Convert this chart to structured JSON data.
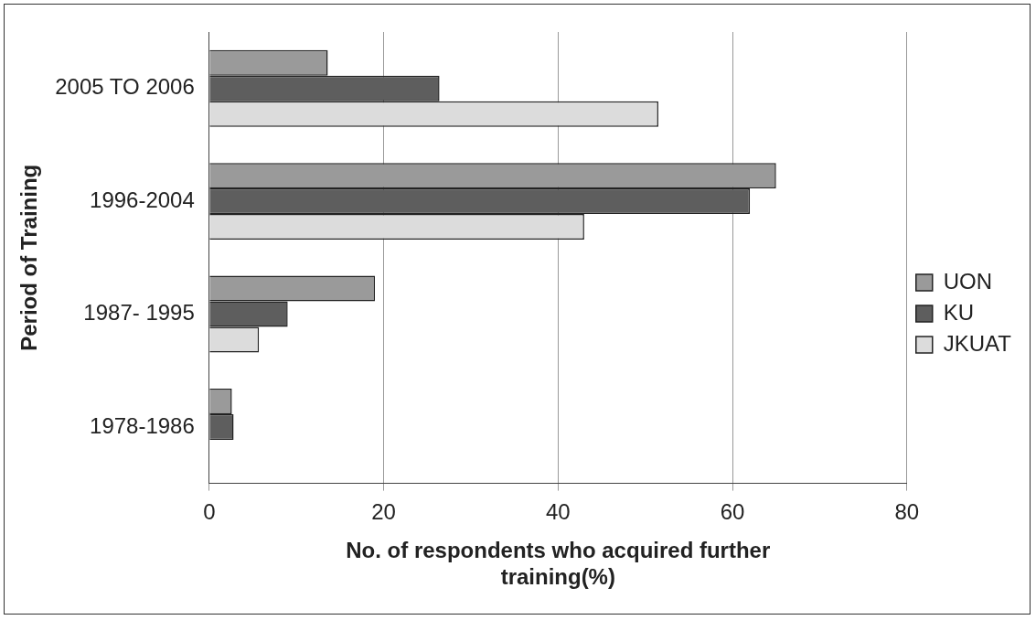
{
  "chart_data": {
    "type": "bar",
    "orientation": "horizontal",
    "xlabel": "No. of respondents who acquired further training(%)",
    "ylabel": "Period of Training",
    "categories": [
      "2005 TO 2006",
      "1996-2004",
      "1987- 1995",
      "1978-1986"
    ],
    "series": [
      {
        "name": "UON",
        "color": "#9a9a9a",
        "values": [
          13.6,
          65,
          19,
          2.6
        ]
      },
      {
        "name": "KU",
        "color": "#5e5e5e",
        "values": [
          26.4,
          62,
          9,
          2.8
        ]
      },
      {
        "name": "JKUAT",
        "color": "#dcdcdc",
        "values": [
          51.5,
          43,
          5.7,
          0
        ]
      }
    ],
    "xlim": [
      0,
      80
    ],
    "xticks": [
      0,
      20,
      40,
      60,
      80
    ],
    "grid": "x",
    "legend": "right"
  }
}
